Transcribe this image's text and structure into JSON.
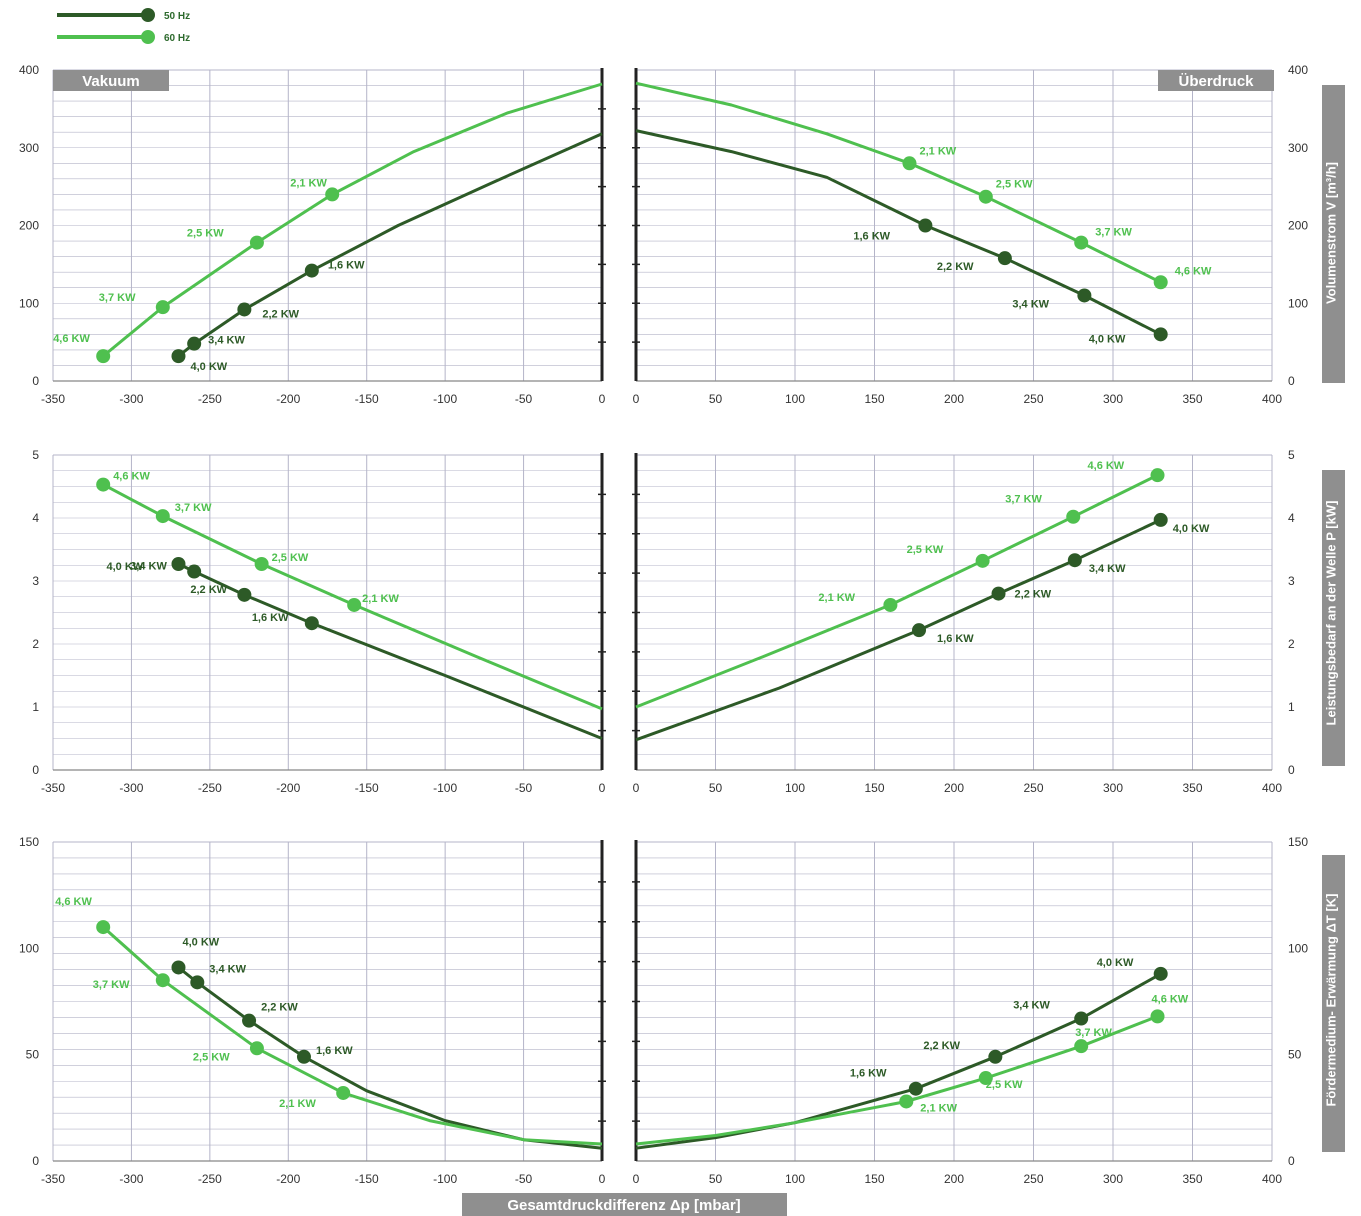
{
  "legend": [
    {
      "label": "50 Hz",
      "color": "#2d5a27"
    },
    {
      "label": "60 Hz",
      "color": "#4fc04f"
    }
  ],
  "banners": {
    "left": "Vakuum",
    "right": "Überdruck"
  },
  "xlabel": "Gesamtdruckdifferenz Δp [mbar]",
  "colors": {
    "s50": "#2d5a27",
    "s60": "#4fc04f",
    "grid": "#b4b4c8",
    "banner": "#8f8f8f",
    "axis": "#222222"
  },
  "chart_data": [
    {
      "type": "line",
      "panel": "vacuum",
      "ylabel": "",
      "xlim": [
        -350,
        0
      ],
      "ylim": [
        0,
        400
      ],
      "xticks": [
        "-350",
        "-300",
        "-250",
        "-200",
        "-150",
        "-100",
        "-50",
        "0"
      ],
      "yticks": [
        "0",
        "100",
        "200",
        "300",
        "400"
      ],
      "series": [
        {
          "name": "50 Hz",
          "curve": [
            [
              -270,
              32
            ],
            [
              -260,
              48
            ],
            [
              -228,
              92
            ],
            [
              -185,
              142
            ],
            [
              -130,
              200
            ],
            [
              -70,
              255
            ],
            [
              0,
              318
            ]
          ],
          "points": [
            {
              "x": -270,
              "y": 32,
              "label": "4,0 KW"
            },
            {
              "x": -260,
              "y": 48,
              "label": "3,4 KW"
            },
            {
              "x": -228,
              "y": 92,
              "label": "2,2 KW"
            },
            {
              "x": -185,
              "y": 142,
              "label": "1,6 KW"
            }
          ]
        },
        {
          "name": "60 Hz",
          "curve": [
            [
              -318,
              32
            ],
            [
              -280,
              95
            ],
            [
              -220,
              178
            ],
            [
              -172,
              240
            ],
            [
              -120,
              295
            ],
            [
              -60,
              345
            ],
            [
              0,
              382
            ]
          ],
          "points": [
            {
              "x": -318,
              "y": 32,
              "label": "4,6 KW"
            },
            {
              "x": -280,
              "y": 95,
              "label": "3,7 KW"
            },
            {
              "x": -220,
              "y": 178,
              "label": "2,5 KW"
            },
            {
              "x": -172,
              "y": 240,
              "label": "2,1 KW"
            }
          ]
        }
      ]
    },
    {
      "type": "line",
      "panel": "overpressure",
      "ylabel": "Volumenstrom V [m³/h]",
      "xlim": [
        0,
        400
      ],
      "ylim": [
        0,
        400
      ],
      "xticks": [
        "0",
        "50",
        "100",
        "150",
        "200",
        "250",
        "300",
        "350",
        "400"
      ],
      "yticks": [
        "0",
        "100",
        "200",
        "300",
        "400"
      ],
      "series": [
        {
          "name": "50 Hz",
          "curve": [
            [
              0,
              322
            ],
            [
              60,
              295
            ],
            [
              120,
              262
            ],
            [
              182,
              200
            ],
            [
              232,
              158
            ],
            [
              282,
              110
            ],
            [
              330,
              60
            ]
          ],
          "points": [
            {
              "x": 182,
              "y": 200,
              "label": "1,6 KW"
            },
            {
              "x": 232,
              "y": 158,
              "label": "2,2 KW"
            },
            {
              "x": 282,
              "y": 110,
              "label": "3,4 KW"
            },
            {
              "x": 330,
              "y": 60,
              "label": "4,0 KW"
            }
          ]
        },
        {
          "name": "60 Hz",
          "curve": [
            [
              0,
              383
            ],
            [
              60,
              355
            ],
            [
              120,
              318
            ],
            [
              172,
              280
            ],
            [
              220,
              237
            ],
            [
              280,
              178
            ],
            [
              330,
              127
            ]
          ],
          "points": [
            {
              "x": 172,
              "y": 280,
              "label": "2,1 KW"
            },
            {
              "x": 220,
              "y": 237,
              "label": "2,5 KW"
            },
            {
              "x": 280,
              "y": 178,
              "label": "3,7 KW"
            },
            {
              "x": 330,
              "y": 127,
              "label": "4,6 KW"
            }
          ]
        }
      ]
    },
    {
      "type": "line",
      "panel": "vacuum",
      "ylabel": "",
      "xlim": [
        -350,
        0
      ],
      "ylim": [
        0,
        5
      ],
      "xticks": [
        "-350",
        "-300",
        "-250",
        "-200",
        "-150",
        "-100",
        "-50",
        "0"
      ],
      "yticks": [
        "0",
        "1",
        "2",
        "3",
        "4",
        "5"
      ],
      "series": [
        {
          "name": "50 Hz",
          "curve": [
            [
              -270,
              3.27
            ],
            [
              -260,
              3.15
            ],
            [
              -228,
              2.78
            ],
            [
              -185,
              2.33
            ],
            [
              -100,
              1.5
            ],
            [
              0,
              0.5
            ]
          ],
          "points": [
            {
              "x": -270,
              "y": 3.27,
              "label": "4,0 KW"
            },
            {
              "x": -260,
              "y": 3.15,
              "label": "3,4 KW"
            },
            {
              "x": -228,
              "y": 2.78,
              "label": "2,2 KW"
            },
            {
              "x": -185,
              "y": 2.33,
              "label": "1,6 KW"
            }
          ]
        },
        {
          "name": "60 Hz",
          "curve": [
            [
              -318,
              4.53
            ],
            [
              -280,
              4.03
            ],
            [
              -217,
              3.27
            ],
            [
              -158,
              2.62
            ],
            [
              -80,
              1.8
            ],
            [
              0,
              0.97
            ]
          ],
          "points": [
            {
              "x": -318,
              "y": 4.53,
              "label": "4,6 KW"
            },
            {
              "x": -280,
              "y": 4.03,
              "label": "3,7 KW"
            },
            {
              "x": -217,
              "y": 3.27,
              "label": "2,5 KW"
            },
            {
              "x": -158,
              "y": 2.62,
              "label": "2,1 KW"
            }
          ]
        }
      ]
    },
    {
      "type": "line",
      "panel": "overpressure",
      "ylabel": "Leistungsbedarf an der Welle P [kW]",
      "xlim": [
        0,
        400
      ],
      "ylim": [
        0,
        5
      ],
      "xticks": [
        "0",
        "50",
        "100",
        "150",
        "200",
        "250",
        "300",
        "350",
        "400"
      ],
      "yticks": [
        "0",
        "1",
        "2",
        "3",
        "4",
        "5"
      ],
      "series": [
        {
          "name": "50 Hz",
          "curve": [
            [
              0,
              0.48
            ],
            [
              90,
              1.3
            ],
            [
              178,
              2.22
            ],
            [
              228,
              2.8
            ],
            [
              276,
              3.33
            ],
            [
              330,
              3.97
            ]
          ],
          "points": [
            {
              "x": 178,
              "y": 2.22,
              "label": "1,6 KW"
            },
            {
              "x": 228,
              "y": 2.8,
              "label": "2,2 KW"
            },
            {
              "x": 276,
              "y": 3.33,
              "label": "3,4 KW"
            },
            {
              "x": 330,
              "y": 3.97,
              "label": "4,0 KW"
            }
          ]
        },
        {
          "name": "60 Hz",
          "curve": [
            [
              0,
              1.0
            ],
            [
              80,
              1.8
            ],
            [
              160,
              2.62
            ],
            [
              218,
              3.32
            ],
            [
              275,
              4.02
            ],
            [
              328,
              4.68
            ]
          ],
          "points": [
            {
              "x": 160,
              "y": 2.62,
              "label": "2,1 KW"
            },
            {
              "x": 218,
              "y": 3.32,
              "label": "2,5 KW"
            },
            {
              "x": 275,
              "y": 4.02,
              "label": "3,7 KW"
            },
            {
              "x": 328,
              "y": 4.68,
              "label": "4,6 KW"
            }
          ]
        }
      ]
    },
    {
      "type": "line",
      "panel": "vacuum",
      "ylabel": "",
      "xlim": [
        -350,
        0
      ],
      "ylim": [
        0,
        150
      ],
      "xticks": [
        "-350",
        "-300",
        "-250",
        "-200",
        "-150",
        "-100",
        "-50",
        "0"
      ],
      "yticks": [
        "0",
        "50",
        "100",
        "150"
      ],
      "series": [
        {
          "name": "50 Hz",
          "curve": [
            [
              -270,
              91
            ],
            [
              -258,
              84
            ],
            [
              -225,
              66
            ],
            [
              -190,
              49
            ],
            [
              -150,
              33
            ],
            [
              -100,
              19
            ],
            [
              -50,
              10
            ],
            [
              0,
              6
            ]
          ],
          "points": [
            {
              "x": -270,
              "y": 91,
              "label": "4,0 KW"
            },
            {
              "x": -258,
              "y": 84,
              "label": "3,4 KW"
            },
            {
              "x": -225,
              "y": 66,
              "label": "2,2 KW"
            },
            {
              "x": -190,
              "y": 49,
              "label": "1,6 KW"
            }
          ]
        },
        {
          "name": "60 Hz",
          "curve": [
            [
              -318,
              110
            ],
            [
              -280,
              85
            ],
            [
              -220,
              53
            ],
            [
              -165,
              32
            ],
            [
              -110,
              19
            ],
            [
              -50,
              10
            ],
            [
              0,
              8
            ]
          ],
          "points": [
            {
              "x": -318,
              "y": 110,
              "label": "4,6 KW"
            },
            {
              "x": -280,
              "y": 85,
              "label": "3,7 KW"
            },
            {
              "x": -220,
              "y": 53,
              "label": "2,5 KW"
            },
            {
              "x": -165,
              "y": 32,
              "label": "2,1 KW"
            }
          ]
        }
      ]
    },
    {
      "type": "line",
      "panel": "overpressure",
      "ylabel": "Fördermedium- Erwärmung ΔT [K]",
      "xlim": [
        0,
        400
      ],
      "ylim": [
        0,
        150
      ],
      "xticks": [
        "0",
        "50",
        "100",
        "150",
        "200",
        "250",
        "300",
        "350",
        "400"
      ],
      "yticks": [
        "0",
        "50",
        "100",
        "150"
      ],
      "series": [
        {
          "name": "50 Hz",
          "curve": [
            [
              0,
              6
            ],
            [
              50,
              11
            ],
            [
              100,
              18
            ],
            [
              176,
              34
            ],
            [
              226,
              49
            ],
            [
              280,
              67
            ],
            [
              330,
              88
            ]
          ],
          "points": [
            {
              "x": 176,
              "y": 34,
              "label": "1,6 KW"
            },
            {
              "x": 226,
              "y": 49,
              "label": "2,2 KW"
            },
            {
              "x": 280,
              "y": 67,
              "label": "3,4 KW"
            },
            {
              "x": 330,
              "y": 88,
              "label": "4,0 KW"
            }
          ]
        },
        {
          "name": "60 Hz",
          "curve": [
            [
              0,
              8
            ],
            [
              50,
              12
            ],
            [
              100,
              18
            ],
            [
              170,
              28
            ],
            [
              220,
              39
            ],
            [
              280,
              54
            ],
            [
              328,
              68
            ]
          ],
          "points": [
            {
              "x": 170,
              "y": 28,
              "label": "2,1 KW"
            },
            {
              "x": 220,
              "y": 39,
              "label": "2,5 KW"
            },
            {
              "x": 280,
              "y": 54,
              "label": "3,7 KW"
            },
            {
              "x": 328,
              "y": 68,
              "label": "4,6 KW"
            }
          ]
        }
      ]
    }
  ]
}
